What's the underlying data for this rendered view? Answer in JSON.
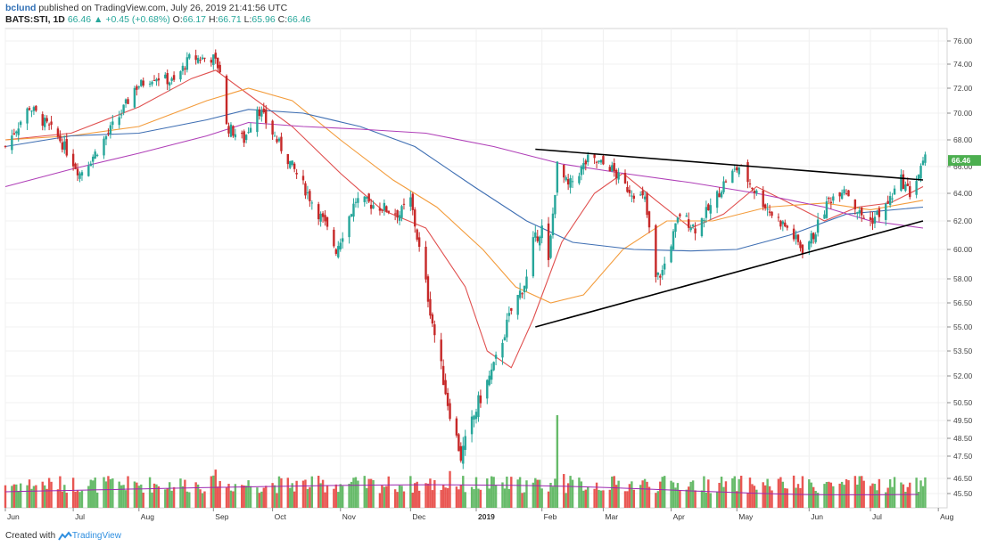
{
  "header": {
    "author": "bclund",
    "published_text": " published on TradingView.com, July 26, 2019 21:41:56 UTC",
    "symbol": "BATS:STI, 1D",
    "last": "66.46",
    "change": "▲ +0.45 (+0.68%)",
    "open_label": "O:",
    "open": "66.17",
    "high_label": "H:",
    "high": "66.71",
    "low_label": "L:",
    "low": "65.96",
    "close_label": "C:",
    "close": "66.46"
  },
  "footer": {
    "created_with": "Created with",
    "brand": "TradingView"
  },
  "colors": {
    "up": "#26a69a",
    "down": "#c62828",
    "ma20": "#e0504f",
    "ma50": "#f39c3c",
    "ma100": "#3f6fb3",
    "ma200": "#b040b8",
    "vol_up": "#4caf50",
    "vol_down": "#e53935",
    "price_tag": "#4caf50"
  },
  "chart_data": {
    "type": "candlestick",
    "y_ticks": [
      "45.50",
      "46.50",
      "47.50",
      "48.50",
      "49.50",
      "50.50",
      "52.00",
      "53.50",
      "55.00",
      "56.50",
      "58.00",
      "60.00",
      "62.00",
      "64.00",
      "66.00",
      "68.00",
      "70.00",
      "72.00",
      "74.00",
      "76.00"
    ],
    "x_ticks": [
      "Jun",
      "Jul",
      "Aug",
      "Sep",
      "Oct",
      "Nov",
      "Dec",
      "2019",
      "Feb",
      "Mar",
      "Apr",
      "May",
      "Jun",
      "Jul",
      "Aug"
    ],
    "last_price": "66.46",
    "scale": "log",
    "price_path": [
      [
        "2018-06-01",
        67.5
      ],
      [
        "2018-06-12",
        70.5
      ],
      [
        "2018-06-26",
        68.0
      ],
      [
        "2018-07-05",
        65.5
      ],
      [
        "2018-07-12",
        67.0
      ],
      [
        "2018-07-24",
        70.0
      ],
      [
        "2018-07-30",
        72.0
      ],
      [
        "2018-08-08",
        73.0
      ],
      [
        "2018-08-17",
        72.5
      ],
      [
        "2018-08-24",
        74.5
      ],
      [
        "2018-09-04",
        74.5
      ],
      [
        "2018-09-07",
        73.5
      ],
      [
        "2018-09-10",
        69.0
      ],
      [
        "2018-09-18",
        68.0
      ],
      [
        "2018-09-24",
        70.5
      ],
      [
        "2018-10-01",
        68.5
      ],
      [
        "2018-10-10",
        66.0
      ],
      [
        "2018-10-24",
        62.0
      ],
      [
        "2018-10-30",
        60.0
      ],
      [
        "2018-11-08",
        63.5
      ],
      [
        "2018-11-20",
        63.0
      ],
      [
        "2018-11-28",
        62.5
      ],
      [
        "2018-12-03",
        63.5
      ],
      [
        "2018-12-07",
        60.0
      ],
      [
        "2018-12-14",
        54.5
      ],
      [
        "2018-12-20",
        50.5
      ],
      [
        "2018-12-26",
        47.5
      ],
      [
        "2019-01-03",
        50.5
      ],
      [
        "2019-01-10",
        52.5
      ],
      [
        "2019-01-18",
        56.0
      ],
      [
        "2019-01-25",
        58.0
      ],
      [
        "2019-01-28",
        60.5
      ],
      [
        "2019-02-01",
        61.5
      ],
      [
        "2019-02-04",
        59.0
      ],
      [
        "2019-02-08",
        66.0
      ],
      [
        "2019-02-13",
        64.5
      ],
      [
        "2019-02-22",
        66.5
      ],
      [
        "2019-03-04",
        66.0
      ],
      [
        "2019-03-11",
        64.5
      ],
      [
        "2019-03-20",
        63.5
      ],
      [
        "2019-03-25",
        58.0
      ],
      [
        "2019-03-28",
        58.5
      ],
      [
        "2019-04-05",
        62.5
      ],
      [
        "2019-04-12",
        61.5
      ],
      [
        "2019-04-19",
        63.0
      ],
      [
        "2019-04-26",
        65.0
      ],
      [
        "2019-05-02",
        66.0
      ],
      [
        "2019-05-10",
        64.0
      ],
      [
        "2019-05-17",
        62.5
      ],
      [
        "2019-05-24",
        61.5
      ],
      [
        "2019-05-31",
        60.0
      ],
      [
        "2019-06-05",
        61.0
      ],
      [
        "2019-06-12",
        63.5
      ],
      [
        "2019-06-19",
        64.5
      ],
      [
        "2019-06-26",
        62.5
      ],
      [
        "2019-07-01",
        62.0
      ],
      [
        "2019-07-08",
        63.0
      ],
      [
        "2019-07-15",
        65.0
      ],
      [
        "2019-07-19",
        64.0
      ],
      [
        "2019-07-26",
        66.46
      ]
    ],
    "triangle": [
      {
        "from": [
          "2019-01-29",
          67.3
        ],
        "to": [
          "2019-07-25",
          65.0
        ]
      },
      {
        "from": [
          "2019-01-29",
          55.0
        ],
        "to": [
          "2019-07-25",
          62.0
        ]
      }
    ],
    "moving_averages": [
      {
        "key": "ma20",
        "points": [
          [
            "2018-06-01",
            68.0
          ],
          [
            "2018-07-01",
            68.5
          ],
          [
            "2018-08-01",
            70.5
          ],
          [
            "2018-08-25",
            72.8
          ],
          [
            "2018-09-05",
            73.5
          ],
          [
            "2018-09-20",
            71.5
          ],
          [
            "2018-10-10",
            69.0
          ],
          [
            "2018-11-01",
            65.5
          ],
          [
            "2018-11-20",
            62.8
          ],
          [
            "2018-12-10",
            61.5
          ],
          [
            "2018-12-28",
            57.5
          ],
          [
            "2019-01-07",
            53.5
          ],
          [
            "2019-01-18",
            52.5
          ],
          [
            "2019-01-28",
            55.5
          ],
          [
            "2019-02-10",
            60.5
          ],
          [
            "2019-02-25",
            64.0
          ],
          [
            "2019-03-10",
            65.5
          ],
          [
            "2019-03-25",
            63.5
          ],
          [
            "2019-04-10",
            61.5
          ],
          [
            "2019-04-25",
            62.5
          ],
          [
            "2019-05-10",
            64.5
          ],
          [
            "2019-05-25",
            63.3
          ],
          [
            "2019-06-10",
            62.0
          ],
          [
            "2019-06-25",
            63.0
          ],
          [
            "2019-07-10",
            63.3
          ],
          [
            "2019-07-25",
            64.5
          ]
        ]
      },
      {
        "key": "ma50",
        "points": [
          [
            "2018-06-01",
            68.0
          ],
          [
            "2018-07-01",
            68.3
          ],
          [
            "2018-08-01",
            69.0
          ],
          [
            "2018-09-01",
            71.0
          ],
          [
            "2018-09-20",
            72.0
          ],
          [
            "2018-10-10",
            71.0
          ],
          [
            "2018-11-01",
            68.0
          ],
          [
            "2018-11-25",
            65.0
          ],
          [
            "2018-12-15",
            63.0
          ],
          [
            "2019-01-05",
            60.0
          ],
          [
            "2019-01-20",
            57.5
          ],
          [
            "2019-02-05",
            56.5
          ],
          [
            "2019-02-20",
            57.0
          ],
          [
            "2019-03-10",
            60.0
          ],
          [
            "2019-03-30",
            62.0
          ],
          [
            "2019-04-20",
            62.0
          ],
          [
            "2019-05-15",
            63.0
          ],
          [
            "2019-06-10",
            63.3
          ],
          [
            "2019-07-01",
            62.8
          ],
          [
            "2019-07-25",
            63.5
          ]
        ]
      },
      {
        "key": "ma100",
        "points": [
          [
            "2018-06-01",
            67.5
          ],
          [
            "2018-07-01",
            68.3
          ],
          [
            "2018-08-01",
            68.5
          ],
          [
            "2018-09-01",
            69.5
          ],
          [
            "2018-09-20",
            70.3
          ],
          [
            "2018-10-15",
            70.0
          ],
          [
            "2018-11-10",
            69.0
          ],
          [
            "2018-12-05",
            67.5
          ],
          [
            "2019-01-01",
            64.5
          ],
          [
            "2019-01-25",
            62.0
          ],
          [
            "2019-02-15",
            60.5
          ],
          [
            "2019-03-15",
            60.0
          ],
          [
            "2019-04-10",
            59.9
          ],
          [
            "2019-05-01",
            60.0
          ],
          [
            "2019-05-25",
            61.0
          ],
          [
            "2019-06-20",
            62.5
          ],
          [
            "2019-07-25",
            63.0
          ]
        ]
      },
      {
        "key": "ma200",
        "points": [
          [
            "2018-06-01",
            64.5
          ],
          [
            "2018-07-01",
            65.8
          ],
          [
            "2018-08-01",
            67.0
          ],
          [
            "2018-09-01",
            68.3
          ],
          [
            "2018-09-20",
            69.3
          ],
          [
            "2018-10-15",
            69.0
          ],
          [
            "2018-11-10",
            68.8
          ],
          [
            "2018-12-10",
            68.5
          ],
          [
            "2019-01-10",
            67.5
          ],
          [
            "2019-02-10",
            66.2
          ],
          [
            "2019-03-10",
            65.5
          ],
          [
            "2019-04-10",
            64.8
          ],
          [
            "2019-05-10",
            64.0
          ],
          [
            "2019-06-10",
            63.0
          ],
          [
            "2019-07-01",
            62.0
          ],
          [
            "2019-07-25",
            61.5
          ]
        ]
      }
    ],
    "volume_spikes": [
      {
        "date": "2018-09-05",
        "value": 2.6
      },
      {
        "date": "2018-12-21",
        "value": 2.5
      },
      {
        "date": "2019-02-08",
        "value": 6.3
      },
      {
        "date": "2019-02-11",
        "value": 2.3
      }
    ]
  }
}
